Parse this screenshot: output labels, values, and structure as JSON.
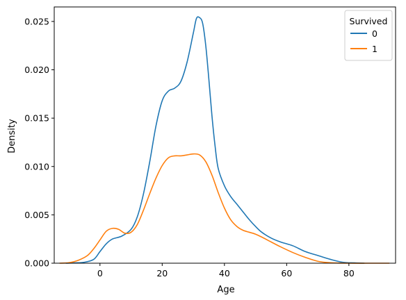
{
  "chart_data": {
    "type": "line",
    "xlabel": "Age",
    "ylabel": "Density",
    "xlim": [
      -14.7,
      95.0
    ],
    "ylim": [
      0,
      0.0265
    ],
    "xticks": [
      0,
      20,
      40,
      60,
      80
    ],
    "yticks": [
      0.0,
      0.005,
      0.01,
      0.015,
      0.02,
      0.025
    ],
    "ytick_labels": [
      "0.000",
      "0.005",
      "0.010",
      "0.015",
      "0.020",
      "0.025"
    ],
    "grid": false,
    "legend": {
      "title": "Survived",
      "placement": "top-right"
    },
    "series": [
      {
        "name": "0",
        "color": "#1f77b4",
        "points": [
          [
            -11,
            0.0
          ],
          [
            -8,
            3e-05
          ],
          [
            -5,
            0.0001
          ],
          [
            -2,
            0.0004
          ],
          [
            0,
            0.0012
          ],
          [
            2,
            0.002
          ],
          [
            4,
            0.0025
          ],
          [
            7,
            0.0028
          ],
          [
            10,
            0.0035
          ],
          [
            12,
            0.0048
          ],
          [
            14,
            0.0072
          ],
          [
            16,
            0.0105
          ],
          [
            18,
            0.0142
          ],
          [
            20,
            0.0168
          ],
          [
            22,
            0.0178
          ],
          [
            24,
            0.0181
          ],
          [
            26,
            0.0188
          ],
          [
            28,
            0.0208
          ],
          [
            30,
            0.0238
          ],
          [
            31,
            0.0253
          ],
          [
            32,
            0.0254
          ],
          [
            33,
            0.0248
          ],
          [
            34,
            0.0225
          ],
          [
            35,
            0.019
          ],
          [
            36,
            0.0152
          ],
          [
            37,
            0.0121
          ],
          [
            38,
            0.0098
          ],
          [
            40,
            0.008
          ],
          [
            42,
            0.0069
          ],
          [
            44,
            0.0061
          ],
          [
            46,
            0.0053
          ],
          [
            48,
            0.0045
          ],
          [
            50,
            0.0038
          ],
          [
            52,
            0.0032
          ],
          [
            55,
            0.0026
          ],
          [
            58,
            0.0022
          ],
          [
            62,
            0.0018
          ],
          [
            66,
            0.0012
          ],
          [
            70,
            0.0008
          ],
          [
            74,
            0.0004
          ],
          [
            78,
            0.0001
          ],
          [
            82,
            3e-05
          ],
          [
            85,
            0.0
          ]
        ]
      },
      {
        "name": "1",
        "color": "#ff7f0e",
        "points": [
          [
            -13,
            0.0
          ],
          [
            -10,
            5e-05
          ],
          [
            -7,
            0.0003
          ],
          [
            -4,
            0.0008
          ],
          [
            -2,
            0.0015
          ],
          [
            0,
            0.0024
          ],
          [
            2,
            0.0033
          ],
          [
            4,
            0.0036
          ],
          [
            6,
            0.0035
          ],
          [
            8,
            0.0031
          ],
          [
            10,
            0.0032
          ],
          [
            12,
            0.004
          ],
          [
            14,
            0.0055
          ],
          [
            16,
            0.0072
          ],
          [
            18,
            0.0088
          ],
          [
            20,
            0.0101
          ],
          [
            22,
            0.0109
          ],
          [
            24,
            0.0111
          ],
          [
            26,
            0.0111
          ],
          [
            28,
            0.0112
          ],
          [
            30,
            0.0113
          ],
          [
            32,
            0.0112
          ],
          [
            34,
            0.0105
          ],
          [
            36,
            0.0091
          ],
          [
            38,
            0.0073
          ],
          [
            40,
            0.0057
          ],
          [
            42,
            0.0045
          ],
          [
            44,
            0.0038
          ],
          [
            46,
            0.0034
          ],
          [
            48,
            0.0032
          ],
          [
            50,
            0.003
          ],
          [
            52,
            0.0027
          ],
          [
            55,
            0.0022
          ],
          [
            58,
            0.0017
          ],
          [
            62,
            0.0011
          ],
          [
            66,
            0.0006
          ],
          [
            70,
            0.0002
          ],
          [
            74,
            5e-05
          ],
          [
            80,
            0.0
          ],
          [
            86,
            0.0
          ],
          [
            93,
            0.0
          ]
        ]
      }
    ]
  }
}
